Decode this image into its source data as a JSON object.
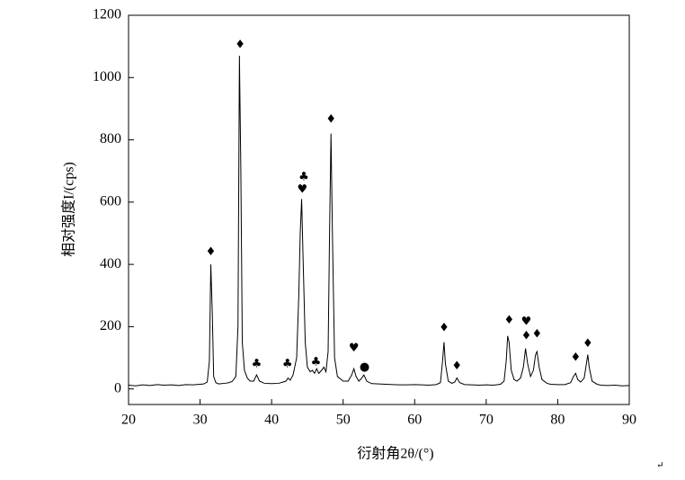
{
  "chart_data": {
    "type": "line",
    "y_label": "相对强度I/(cps)",
    "x_label": "衍射角2θ/(°)",
    "return_mark": "↵",
    "xlim": [
      20,
      90
    ],
    "xticks": [
      20,
      30,
      40,
      50,
      60,
      70,
      80,
      90
    ],
    "ylim": [
      -50,
      1200
    ],
    "yticks": [
      0,
      200,
      400,
      600,
      800,
      1000,
      1200
    ],
    "color": "#000000",
    "x": [
      20,
      21,
      22,
      23,
      24,
      25,
      26,
      27,
      28,
      29,
      30,
      30.5,
      31,
      31.3,
      31.5,
      31.7,
      31.9,
      32.2,
      32.6,
      33,
      33.5,
      34,
      34.5,
      35,
      35.3,
      35.5,
      35.7,
      35.9,
      36.2,
      36.6,
      37,
      37.5,
      37.9,
      38.3,
      39,
      40,
      41,
      42,
      42.3,
      42.6,
      43,
      43.5,
      43.8,
      44,
      44.2,
      44.4,
      44.7,
      45,
      45.4,
      45.7,
      46,
      46.3,
      46.6,
      47,
      47.3,
      47.6,
      47.9,
      48.1,
      48.3,
      48.5,
      48.8,
      49.2,
      50,
      50.7,
      51.2,
      51.5,
      51.8,
      52.2,
      52.6,
      52.9,
      53.3,
      54,
      55,
      56,
      57,
      58,
      59,
      60,
      61,
      62,
      63,
      63.6,
      63.9,
      64.1,
      64.3,
      64.7,
      65.2,
      65.6,
      65.9,
      66.3,
      67,
      68,
      69,
      70,
      71,
      72,
      72.5,
      72.8,
      73,
      73.2,
      73.5,
      73.9,
      74.3,
      74.8,
      75.2,
      75.5,
      75.8,
      76.2,
      76.6,
      76.9,
      77.1,
      77.4,
      77.8,
      78.5,
      79,
      80,
      81,
      81.8,
      82.2,
      82.5,
      82.8,
      83.2,
      83.7,
      84,
      84.2,
      84.4,
      84.8,
      85.5,
      86,
      87,
      88,
      89,
      90
    ],
    "values": [
      12,
      10,
      13,
      11,
      14,
      12,
      13,
      11,
      14,
      13,
      15,
      16,
      22,
      90,
      400,
      250,
      40,
      20,
      16,
      17,
      18,
      20,
      24,
      40,
      200,
      1070,
      700,
      150,
      60,
      35,
      25,
      25,
      45,
      25,
      18,
      17,
      18,
      25,
      35,
      28,
      45,
      100,
      300,
      500,
      610,
      420,
      150,
      70,
      55,
      60,
      50,
      65,
      50,
      60,
      70,
      55,
      120,
      500,
      820,
      500,
      100,
      40,
      25,
      25,
      45,
      65,
      40,
      25,
      35,
      45,
      25,
      17,
      16,
      15,
      14,
      13,
      13,
      14,
      13,
      12,
      14,
      20,
      90,
      150,
      80,
      25,
      18,
      22,
      35,
      20,
      14,
      13,
      12,
      13,
      12,
      15,
      25,
      90,
      170,
      150,
      60,
      30,
      25,
      35,
      70,
      130,
      80,
      40,
      60,
      110,
      120,
      70,
      30,
      18,
      15,
      14,
      14,
      20,
      40,
      50,
      30,
      22,
      35,
      80,
      110,
      70,
      25,
      15,
      12,
      11,
      12,
      10,
      11
    ],
    "annotations": [
      {
        "text": "♦",
        "x": 31.5,
        "y": 440
      },
      {
        "text": "♦",
        "x": 35.6,
        "y": 1105
      },
      {
        "text": "♣",
        "x": 37.9,
        "y": 80
      },
      {
        "text": "♣",
        "x": 42.2,
        "y": 80
      },
      {
        "text": "♣",
        "x": 44.5,
        "y": 680
      },
      {
        "text": "♥",
        "x": 44.3,
        "y": 640
      },
      {
        "text": "♣",
        "x": 46.2,
        "y": 85
      },
      {
        "text": "♦",
        "x": 48.3,
        "y": 865
      },
      {
        "text": "♥",
        "x": 51.5,
        "y": 130
      },
      {
        "text": "●",
        "x": 53.0,
        "y": 70
      },
      {
        "text": "♦",
        "x": 64.1,
        "y": 195
      },
      {
        "text": "♦",
        "x": 65.9,
        "y": 72
      },
      {
        "text": "♦",
        "x": 73.2,
        "y": 220
      },
      {
        "text": "♥",
        "x": 75.6,
        "y": 215
      },
      {
        "text": "♦",
        "x": 75.6,
        "y": 170
      },
      {
        "text": "♦",
        "x": 77.1,
        "y": 175
      },
      {
        "text": "♦",
        "x": 82.5,
        "y": 100
      },
      {
        "text": "♦",
        "x": 84.2,
        "y": 145
      }
    ]
  }
}
